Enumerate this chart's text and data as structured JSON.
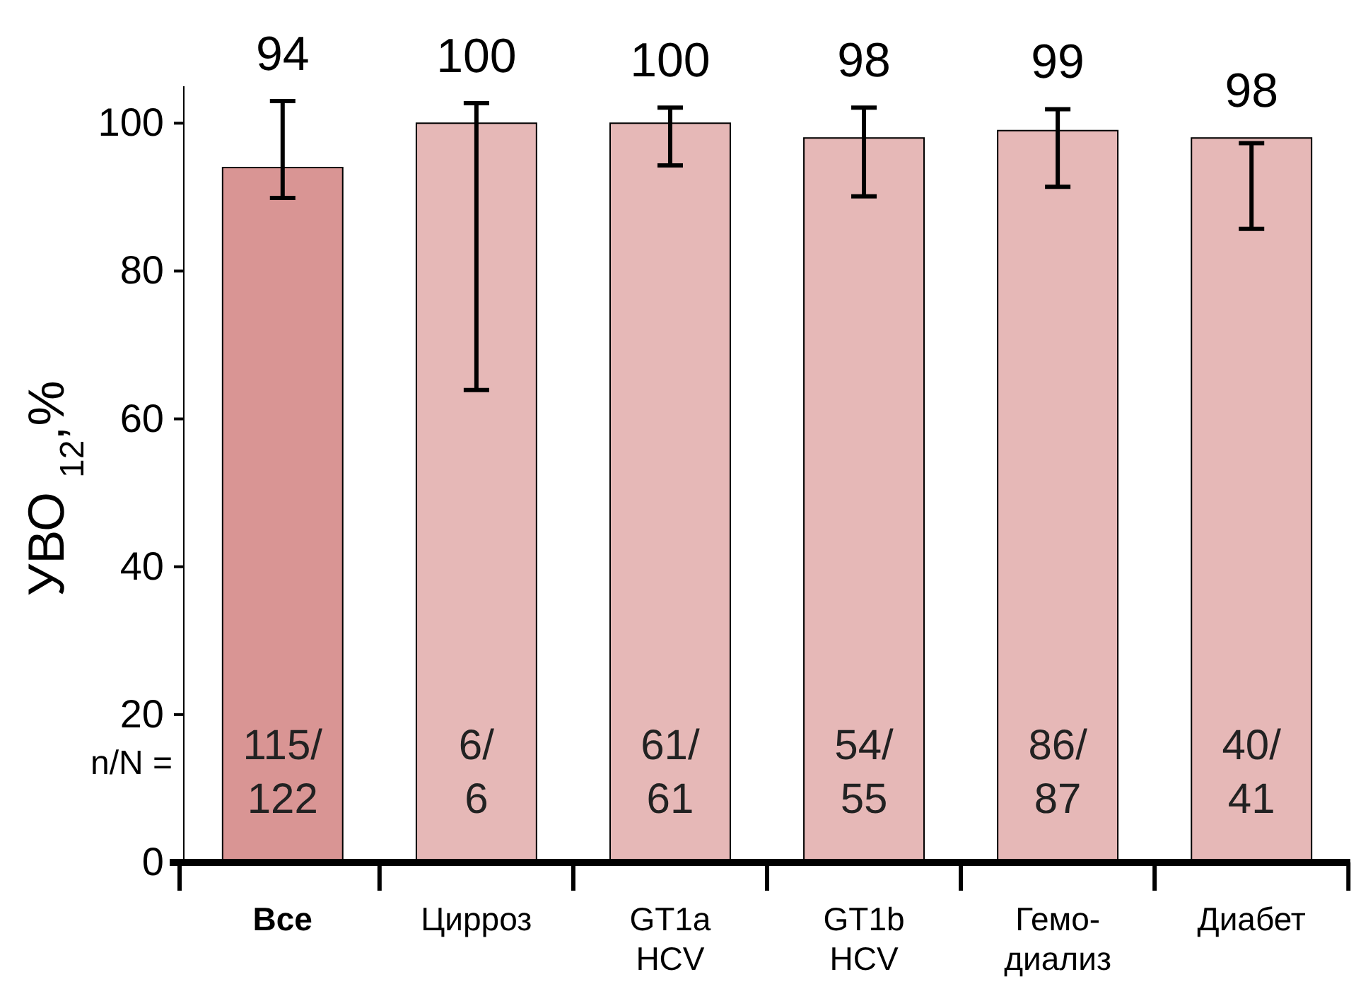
{
  "chart_data": {
    "type": "bar",
    "ylabel": "УВО $_{12}$,%",
    "categories": [
      "Все",
      "Цирроз",
      "GT1a HCV",
      "GT1b HCV",
      "Гемо-диализ",
      "Диабет"
    ],
    "values": [
      94,
      100,
      100,
      98,
      99,
      98
    ],
    "data_labels": true,
    "colors": [
      "#d99594",
      "#e6b8b7",
      "#e6b8b7",
      "#e6b8b7",
      "#e6b8b7",
      "#e6b8b7"
    ],
    "errors": [
      [
        89.9,
        103.0
      ],
      [
        63.9,
        102.7
      ],
      [
        94.3,
        102.1
      ],
      [
        90.1,
        102.1
      ],
      [
        91.4,
        101.9
      ],
      [
        85.7,
        97.3
      ]
    ],
    "ylim": [
      0,
      105
    ],
    "yticks": [
      0,
      20,
      40,
      60,
      80,
      100
    ],
    "grid": false,
    "annotations": [
      "115/122",
      "6/6",
      "61/61",
      "54/55",
      "86/87",
      "40/41",
      "n/N ="
    ]
  }
}
